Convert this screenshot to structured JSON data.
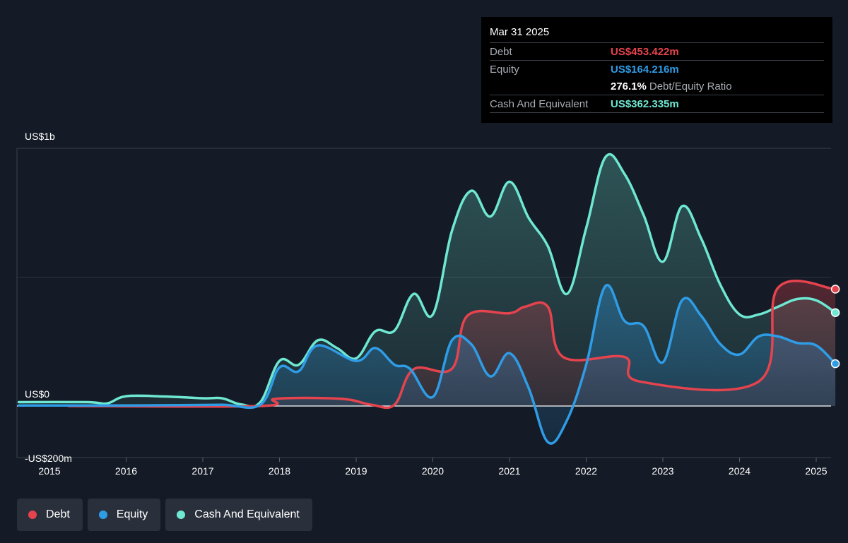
{
  "tooltip": {
    "date": "Mar 31 2025",
    "debt_label": "Debt",
    "debt_value": "US$453.422m",
    "equity_label": "Equity",
    "equity_value": "US$164.216m",
    "ratio_value": "276.1%",
    "ratio_label": "Debt/Equity Ratio",
    "cash_label": "Cash And Equivalent",
    "cash_value": "US$362.335m"
  },
  "legend": {
    "debt": "Debt",
    "equity": "Equity",
    "cash": "Cash And Equivalent"
  },
  "colors": {
    "debt": "#e5434d",
    "equity": "#2f9ce6",
    "cash": "#6ee8d2",
    "background": "#151b26"
  },
  "chart_data": {
    "type": "area",
    "y_unit": "US$ millions",
    "ylim": [
      -200,
      1000
    ],
    "y_tick_labels": [
      {
        "value": 1000,
        "label": "US$1b"
      },
      {
        "value": 0,
        "label": "US$0"
      },
      {
        "value": -200,
        "label": "-US$200m"
      }
    ],
    "x_ticks": [
      "2015",
      "2016",
      "2017",
      "2018",
      "2019",
      "2020",
      "2021",
      "2022",
      "2023",
      "2024",
      "2025"
    ],
    "xlim": [
      2014.6,
      2025.25
    ],
    "series": [
      {
        "name": "Debt",
        "points": [
          [
            2015.25,
            0
          ],
          [
            2017.75,
            0
          ],
          [
            2017.95,
            28
          ],
          [
            2018.8,
            28
          ],
          [
            2019.2,
            5
          ],
          [
            2019.5,
            5
          ],
          [
            2019.75,
            143
          ],
          [
            2020.25,
            145
          ],
          [
            2020.45,
            350
          ],
          [
            2021.0,
            360
          ],
          [
            2021.2,
            385
          ],
          [
            2021.5,
            385
          ],
          [
            2021.7,
            190
          ],
          [
            2022.5,
            190
          ],
          [
            2022.7,
            95
          ],
          [
            2024.25,
            95
          ],
          [
            2024.5,
            458
          ],
          [
            2025.25,
            453.422
          ]
        ]
      },
      {
        "name": "Equity",
        "points": [
          [
            2014.6,
            2
          ],
          [
            2015.75,
            2
          ],
          [
            2016.5,
            3
          ],
          [
            2017.25,
            5
          ],
          [
            2017.75,
            5
          ],
          [
            2018.0,
            150
          ],
          [
            2018.25,
            135
          ],
          [
            2018.5,
            235
          ],
          [
            2019.0,
            175
          ],
          [
            2019.25,
            225
          ],
          [
            2019.5,
            160
          ],
          [
            2019.7,
            145
          ],
          [
            2020.0,
            35
          ],
          [
            2020.25,
            255
          ],
          [
            2020.5,
            240
          ],
          [
            2020.75,
            115
          ],
          [
            2021.0,
            205
          ],
          [
            2021.25,
            70
          ],
          [
            2021.5,
            -140
          ],
          [
            2021.75,
            -55
          ],
          [
            2022.0,
            160
          ],
          [
            2022.25,
            465
          ],
          [
            2022.5,
            330
          ],
          [
            2022.75,
            310
          ],
          [
            2023.0,
            170
          ],
          [
            2023.25,
            410
          ],
          [
            2023.5,
            350
          ],
          [
            2023.75,
            240
          ],
          [
            2024.0,
            200
          ],
          [
            2024.25,
            270
          ],
          [
            2024.5,
            270
          ],
          [
            2024.75,
            245
          ],
          [
            2025.0,
            235
          ],
          [
            2025.25,
            164.216
          ]
        ]
      },
      {
        "name": "Cash And Equivalent",
        "points": [
          [
            2014.6,
            15
          ],
          [
            2015.5,
            15
          ],
          [
            2015.75,
            10
          ],
          [
            2016.0,
            38
          ],
          [
            2016.5,
            37
          ],
          [
            2017.0,
            30
          ],
          [
            2017.25,
            30
          ],
          [
            2017.5,
            6
          ],
          [
            2017.75,
            15
          ],
          [
            2018.0,
            175
          ],
          [
            2018.25,
            160
          ],
          [
            2018.5,
            255
          ],
          [
            2018.75,
            225
          ],
          [
            2019.0,
            185
          ],
          [
            2019.25,
            290
          ],
          [
            2019.5,
            293
          ],
          [
            2019.75,
            435
          ],
          [
            2020.0,
            355
          ],
          [
            2020.25,
            680
          ],
          [
            2020.5,
            835
          ],
          [
            2020.75,
            735
          ],
          [
            2021.0,
            870
          ],
          [
            2021.25,
            730
          ],
          [
            2021.5,
            620
          ],
          [
            2021.75,
            435
          ],
          [
            2022.0,
            690
          ],
          [
            2022.25,
            965
          ],
          [
            2022.5,
            900
          ],
          [
            2022.75,
            740
          ],
          [
            2023.0,
            560
          ],
          [
            2023.25,
            775
          ],
          [
            2023.5,
            650
          ],
          [
            2023.75,
            470
          ],
          [
            2024.0,
            355
          ],
          [
            2024.25,
            355
          ],
          [
            2024.5,
            385
          ],
          [
            2024.75,
            415
          ],
          [
            2025.0,
            410
          ],
          [
            2025.25,
            362.335
          ]
        ]
      }
    ]
  }
}
